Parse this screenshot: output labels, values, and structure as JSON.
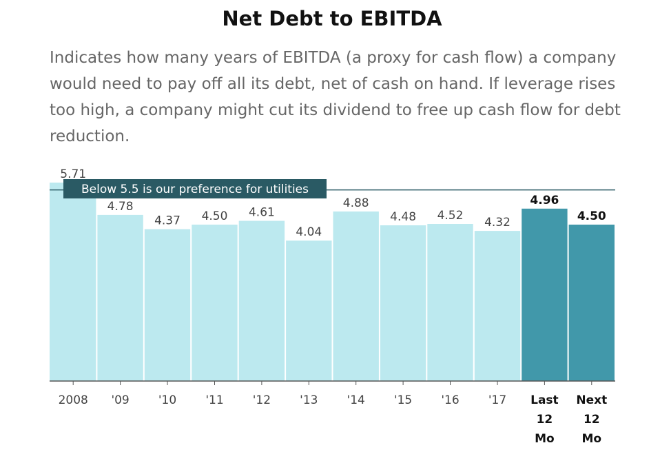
{
  "colors": {
    "bar_light": "#bce9ef",
    "bar_dark": "#4198aa",
    "ref_line": "#2a5a64",
    "ref_label_bg": "#2a5a64",
    "ref_label_text": "#ffffff",
    "axis": "#555555",
    "label": "#444444",
    "label_bold": "#111111"
  },
  "chart_data": {
    "type": "bar",
    "title": "Net Debt to EBITDA",
    "subtitle": "Indicates how many years of EBITDA (a proxy for cash flow) a company would need to pay off all its debt, net of cash on hand. If leverage rises too high, a company might cut its dividend to free up cash flow for debt reduction.",
    "categories": [
      "2008",
      "'09",
      "'10",
      "'11",
      "'12",
      "'13",
      "'14",
      "'15",
      "'16",
      "'17",
      "Last 12 Mo",
      "Next 12 Mo"
    ],
    "values": [
      5.71,
      4.78,
      4.37,
      4.5,
      4.61,
      4.04,
      4.88,
      4.48,
      4.52,
      4.32,
      4.96,
      4.5
    ],
    "value_labels": [
      "5.71",
      "4.78",
      "4.37",
      "4.50",
      "4.61",
      "4.04",
      "4.88",
      "4.48",
      "4.52",
      "4.32",
      "4.96",
      "4.50"
    ],
    "highlighted": [
      false,
      false,
      false,
      false,
      false,
      false,
      false,
      false,
      false,
      false,
      true,
      true
    ],
    "reference_line": {
      "value": 5.5,
      "label": "Below 5.5 is our preference for utilities"
    },
    "ylim": [
      0,
      5.71
    ],
    "xlabel": "",
    "ylabel": "",
    "grid": false
  }
}
